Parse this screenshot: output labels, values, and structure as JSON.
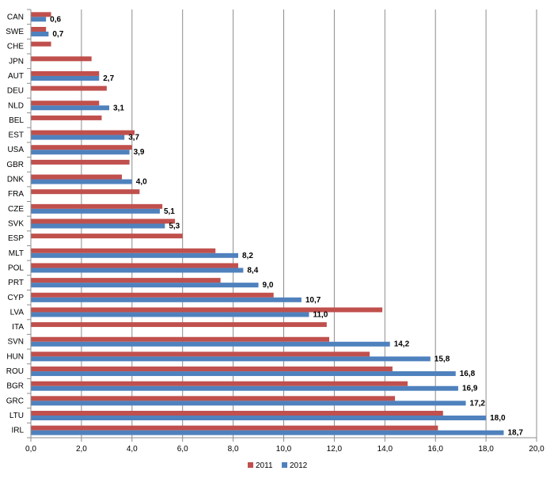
{
  "chart_data": {
    "type": "bar",
    "orientation": "horizontal",
    "categories": [
      "CAN",
      "SWE",
      "CHE",
      "JPN",
      "AUT",
      "DEU",
      "NLD",
      "BEL",
      "EST",
      "USA",
      "GBR",
      "DNK",
      "FRA",
      "CZE",
      "SVK",
      "ESP",
      "MLT",
      "POL",
      "PRT",
      "CYP",
      "LVA",
      "ITA",
      "SVN",
      "HUN",
      "ROU",
      "BGR",
      "GRC",
      "LTU",
      "IRL"
    ],
    "series": [
      {
        "name": "2011",
        "color": "#c0504d",
        "values": [
          0.8,
          0.6,
          0.8,
          2.4,
          2.7,
          3.0,
          2.7,
          2.8,
          4.1,
          4.0,
          3.9,
          3.6,
          4.3,
          5.2,
          5.7,
          6.0,
          7.3,
          8.2,
          7.5,
          9.6,
          13.9,
          11.7,
          11.8,
          13.4,
          14.3,
          14.9,
          14.4,
          16.3,
          16.1
        ]
      },
      {
        "name": "2012",
        "color": "#4f81bd",
        "values": [
          0.6,
          0.7,
          null,
          null,
          2.7,
          null,
          3.1,
          null,
          3.7,
          3.9,
          null,
          4.0,
          null,
          5.1,
          5.3,
          null,
          8.2,
          8.4,
          9.0,
          10.7,
          11.0,
          null,
          14.2,
          15.8,
          16.8,
          16.9,
          17.2,
          18.0,
          18.7
        ]
      }
    ],
    "data_labels_2012": [
      "0,6",
      "0,7",
      "",
      "",
      "2,7",
      "",
      "3,1",
      "",
      "3,7",
      "3,9",
      "",
      "4,0",
      "",
      "5,1",
      "5,3",
      "",
      "8,2",
      "8,4",
      "9,0",
      "10,7",
      "11,0",
      "",
      "14,2",
      "15,8",
      "16,8",
      "16,9",
      "17,2",
      "18,0",
      "18,7"
    ],
    "x_ticks": [
      "0,0",
      "2,0",
      "4,0",
      "6,0",
      "8,0",
      "10,0",
      "12,0",
      "14,0",
      "16,0",
      "18,0",
      "20,0"
    ],
    "xlim": [
      0,
      20
    ],
    "grid": true,
    "legend": "bottom",
    "title": "",
    "xlabel": "",
    "ylabel": ""
  }
}
